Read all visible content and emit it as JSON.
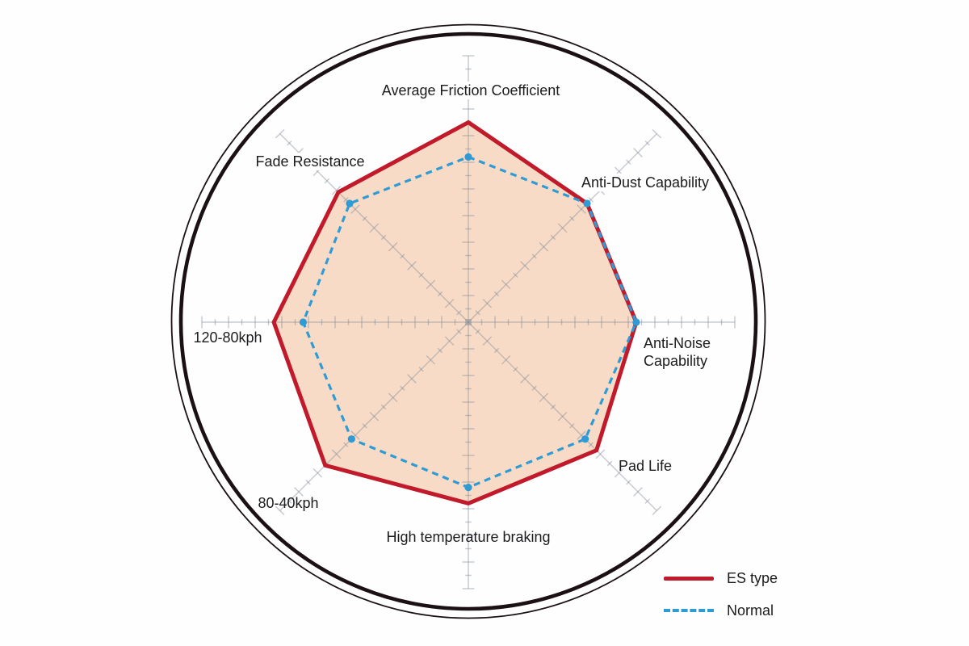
{
  "chart_data": {
    "type": "radar",
    "title": "",
    "categories": [
      "Average Friction Coefficient",
      "Anti-Dust Capability",
      "Anti-Noise Capability",
      "Pad Life",
      "High temperature braking",
      "80-40kph",
      "120-80kph",
      "Fade Resistance"
    ],
    "axis_range": [
      0,
      10
    ],
    "ticks_per_axis": 20,
    "grid": true,
    "legend_position": "bottom-right",
    "series": [
      {
        "name": "ES type",
        "style": "solid",
        "color": "#c01a2b",
        "fill": "#f8dbc6",
        "values": [
          7.5,
          6.3,
          6.3,
          6.8,
          6.8,
          7.6,
          7.3,
          6.9
        ]
      },
      {
        "name": "Normal",
        "style": "dashed",
        "color": "#2e9bd4",
        "fill": "none",
        "values": [
          6.2,
          6.3,
          6.3,
          6.2,
          6.2,
          6.2,
          6.2,
          6.3
        ]
      }
    ],
    "colors": {
      "outer_ring": "#1b1114",
      "grid_line": "#7d8694",
      "label_text": "#1c1c1e"
    }
  }
}
